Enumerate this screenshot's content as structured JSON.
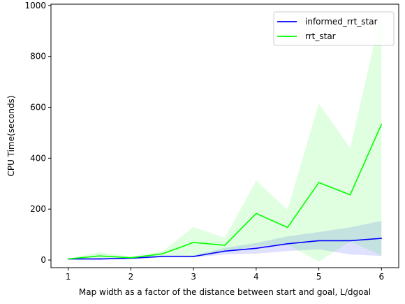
{
  "chart_data": {
    "type": "line",
    "xlabel": "Map width as a factor of the distance between start and goal, L/dgoal",
    "ylabel": "CPU Time(seconds)",
    "xlim": [
      0.725,
      6.275
    ],
    "ylim": [
      -30,
      1005
    ],
    "x_ticks": [
      1,
      2,
      3,
      4,
      5,
      6
    ],
    "y_ticks": [
      0,
      200,
      400,
      600,
      800,
      1000
    ],
    "grid": false,
    "legend_position": "upper right",
    "x": [
      1,
      1.5,
      2,
      2.5,
      3,
      3.5,
      4,
      4.5,
      5,
      5.5,
      6
    ],
    "series": [
      {
        "name": "informed_rrt_star",
        "color": "#0000ff",
        "band_color": "#0000ff",
        "values": [
          4,
          4,
          7,
          14,
          14,
          35,
          46,
          64,
          76,
          76,
          85
        ],
        "lower": [
          2,
          2,
          4,
          10,
          10,
          22,
          25,
          35,
          42,
          22,
          16
        ],
        "upper": [
          7,
          7,
          11,
          18,
          18,
          48,
          67,
          93,
          110,
          128,
          154
        ]
      },
      {
        "name": "rrt_star",
        "color": "#00ff00",
        "band_color": "#00ff00",
        "values": [
          4,
          16,
          9,
          24,
          69,
          58,
          183,
          128,
          304,
          256,
          533
        ],
        "lower": [
          2,
          5,
          6,
          14,
          10,
          32,
          55,
          60,
          -6,
          72,
          18
        ],
        "upper": [
          6,
          31,
          13,
          34,
          130,
          87,
          312,
          198,
          615,
          440,
          975
        ]
      }
    ]
  }
}
